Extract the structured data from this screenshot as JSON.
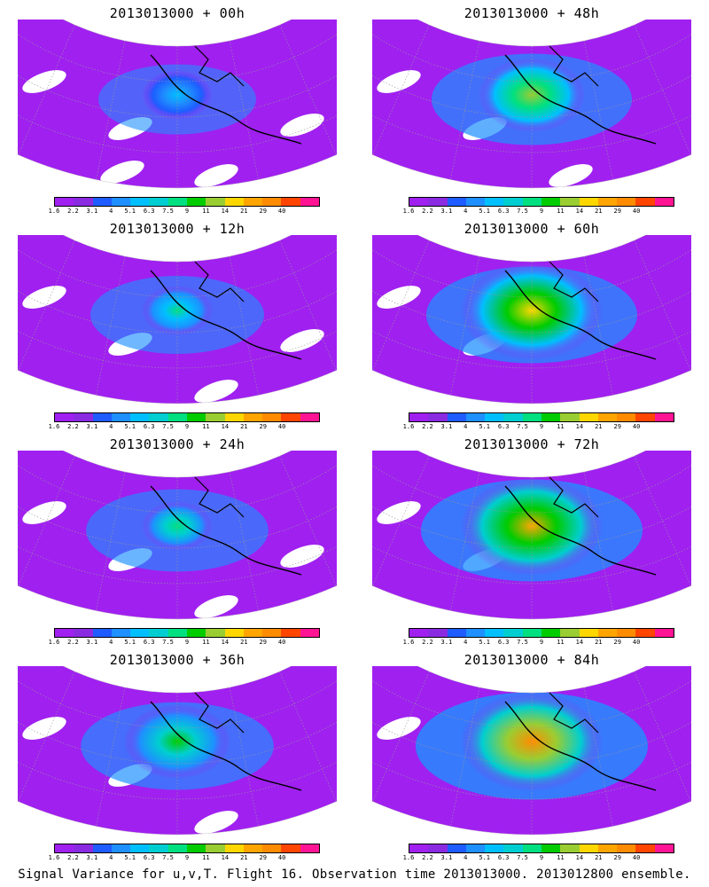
{
  "figure": {
    "caption": "Signal Variance for u,v,T. Flight 16. Observation time 2013013000. 2013012800 ensemble.",
    "panels": [
      {
        "title": "2013013000 + 00h",
        "intensity": 0.15,
        "hotspot": "small"
      },
      {
        "title": "2013013000 + 48h",
        "intensity": 0.55,
        "hotspot": "medium"
      },
      {
        "title": "2013013000 + 12h",
        "intensity": 0.3,
        "hotspot": "small"
      },
      {
        "title": "2013013000 + 60h",
        "intensity": 0.65,
        "hotspot": "large"
      },
      {
        "title": "2013013000 + 24h",
        "intensity": 0.38,
        "hotspot": "small"
      },
      {
        "title": "2013013000 + 72h",
        "intensity": 0.75,
        "hotspot": "large"
      },
      {
        "title": "2013013000 + 36h",
        "intensity": 0.48,
        "hotspot": "medium"
      },
      {
        "title": "2013013000 + 84h",
        "intensity": 0.85,
        "hotspot": "large"
      }
    ],
    "colorbar": {
      "labels": [
        "1.6",
        "2.2",
        "3.1",
        "4",
        "5.1",
        "6.3",
        "7.5",
        "9",
        "11",
        "14",
        "21",
        "29",
        "40"
      ],
      "colors": [
        "#a020f0",
        "#8a2be2",
        "#1e5cff",
        "#1e90ff",
        "#00bfff",
        "#00ced1",
        "#00e080",
        "#00cc00",
        "#9acd32",
        "#ffd700",
        "#ffa500",
        "#ff8c00",
        "#ff4500",
        "#ff1493"
      ]
    },
    "colors": {
      "background": "#ffffff",
      "land_outline": "#000000",
      "grid": "#999999"
    }
  }
}
